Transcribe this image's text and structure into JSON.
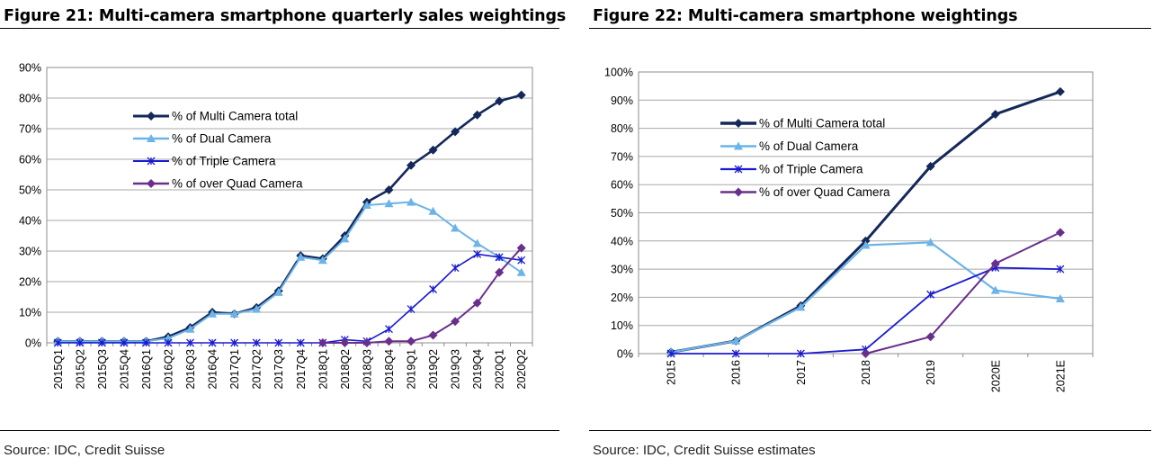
{
  "figures": [
    {
      "title": "Figure 21: Multi-camera smartphone quarterly sales weightings",
      "source": "Source: IDC, Credit Suisse"
    },
    {
      "title": "Figure 22: Multi-camera smartphone weightings",
      "source": "Source: IDC, Credit Suisse estimates"
    }
  ],
  "chart_data": [
    {
      "type": "line",
      "title": "",
      "xlabel": "",
      "ylabel": "",
      "x": [
        "2015Q1",
        "2015Q2",
        "2015Q3",
        "2015Q4",
        "2016Q1",
        "2016Q2",
        "2016Q3",
        "2016Q4",
        "2017Q1",
        "2017Q2",
        "2017Q3",
        "2017Q4",
        "2018Q1",
        "2018Q2",
        "2018Q3",
        "2018Q4",
        "2019Q1",
        "2019Q2",
        "2019Q3",
        "2019Q4",
        "2020Q1",
        "2020Q2"
      ],
      "yticks": [
        "0%",
        "10%",
        "20%",
        "30%",
        "40%",
        "50%",
        "60%",
        "70%",
        "80%",
        "90%"
      ],
      "ylim": [
        0,
        90
      ],
      "grid": true,
      "legend_position": "upper-center",
      "series": [
        {
          "name": "% of Multi Camera total",
          "color": "#14285a",
          "marker": "diamond",
          "values": [
            0.5,
            0.5,
            0.5,
            0.5,
            0.5,
            2,
            5,
            10,
            9.5,
            11.5,
            17,
            28.5,
            27.5,
            35,
            46,
            50,
            58,
            63,
            69,
            74.5,
            79,
            81
          ]
        },
        {
          "name": "% of Dual Camera",
          "color": "#6cb4e8",
          "marker": "triangle",
          "values": [
            0.5,
            0.5,
            0.5,
            0.5,
            0.5,
            1.5,
            4.5,
            9.5,
            9.5,
            11,
            16.5,
            28,
            27,
            34,
            45,
            45.5,
            46,
            43,
            37.5,
            32.5,
            28,
            23
          ]
        },
        {
          "name": "% of Triple Camera",
          "color": "#1a1ad0",
          "marker": "star",
          "values": [
            0,
            0,
            0,
            0,
            0,
            0,
            0,
            0,
            0,
            0,
            0,
            0,
            0,
            1,
            0.5,
            4.5,
            11,
            17.5,
            24.5,
            29,
            28,
            27
          ]
        },
        {
          "name": "% of over Quad Camera",
          "color": "#6a2f8c",
          "marker": "diamond",
          "values": [
            null,
            null,
            null,
            null,
            null,
            null,
            null,
            null,
            null,
            null,
            null,
            null,
            0,
            0,
            0,
            0.5,
            0.5,
            2.5,
            7,
            13,
            23,
            31
          ]
        }
      ]
    },
    {
      "type": "line",
      "title": "",
      "xlabel": "",
      "ylabel": "",
      "x": [
        "2015",
        "2016",
        "2017",
        "2018",
        "2019",
        "2020E",
        "2021E"
      ],
      "yticks": [
        "0%",
        "10%",
        "20%",
        "30%",
        "40%",
        "50%",
        "60%",
        "70%",
        "80%",
        "90%",
        "100%"
      ],
      "ylim": [
        0,
        100
      ],
      "grid": true,
      "legend_position": "upper-left",
      "series": [
        {
          "name": "% of Multi Camera total",
          "color": "#14285a",
          "marker": "diamond",
          "values": [
            0.5,
            4.5,
            17,
            40,
            66.5,
            85,
            93
          ]
        },
        {
          "name": "% of Dual Camera",
          "color": "#6cb4e8",
          "marker": "triangle",
          "values": [
            0.5,
            4.5,
            16.5,
            38.5,
            39.5,
            22.5,
            19.5
          ]
        },
        {
          "name": "% of Triple Camera",
          "color": "#1a1ad0",
          "marker": "star",
          "values": [
            0,
            0,
            0,
            1.5,
            21,
            30.5,
            30
          ]
        },
        {
          "name": "% of over Quad Camera",
          "color": "#6a2f8c",
          "marker": "diamond",
          "values": [
            null,
            null,
            null,
            0,
            6,
            32,
            43
          ]
        }
      ]
    }
  ]
}
